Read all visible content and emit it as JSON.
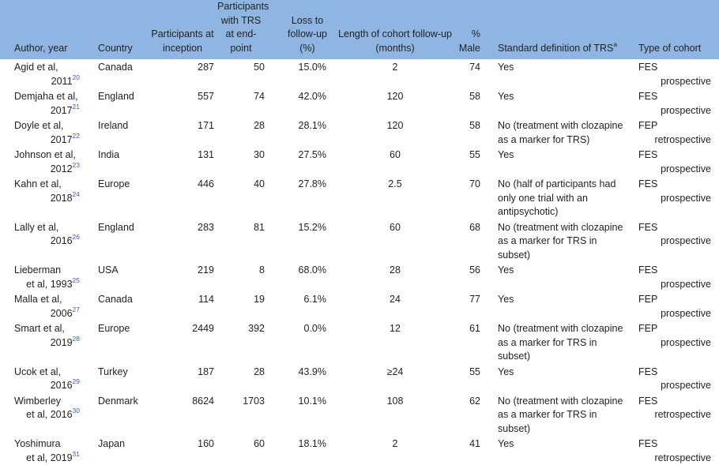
{
  "table": {
    "headers": [
      "Author, year",
      "Country",
      "Participants at inception",
      "Participants with TRS at end-point",
      "Loss to follow-up (%)",
      "Length of cohort follow-up (months)",
      "% Male",
      {
        "text": "Standard definition of TRS",
        "sup": "a"
      },
      "Type of cohort"
    ],
    "rows": [
      {
        "author": [
          "Agid et al,",
          "2011"
        ],
        "ref": "20",
        "country": "Canada",
        "inception": "287",
        "trs": "50",
        "loss": "15.0%",
        "length": "2",
        "male": "74",
        "definition": "Yes",
        "cohort": [
          "FES",
          "prospective"
        ]
      },
      {
        "author": [
          "Demjaha et al,",
          "2017"
        ],
        "ref": "21",
        "country": "England",
        "inception": "557",
        "trs": "74",
        "loss": "42.0%",
        "length": "120",
        "male": "58",
        "definition": "Yes",
        "cohort": [
          "FES",
          "prospective"
        ]
      },
      {
        "author": [
          "Doyle et al,",
          "2017"
        ],
        "ref": "22",
        "country": "Ireland",
        "inception": "171",
        "trs": "28",
        "loss": "28.1%",
        "length": "120",
        "male": "58",
        "definition": "No (treatment with clozapine as a marker for TRS)",
        "cohort": [
          "FEP",
          "retrospective"
        ]
      },
      {
        "author": [
          "Johnson et al,",
          "2012"
        ],
        "ref": "23",
        "country": "India",
        "inception": "131",
        "trs": "30",
        "loss": "27.5%",
        "length": "60",
        "male": "55",
        "definition": "Yes",
        "cohort": [
          "FES",
          "prospective"
        ]
      },
      {
        "author": [
          "Kahn et al,",
          "2018"
        ],
        "ref": "24",
        "country": "Europe",
        "inception": "446",
        "trs": "40",
        "loss": "27.8%",
        "length": "2.5",
        "male": "70",
        "definition": "No (half of participants had only one trial with an antipsychotic)",
        "cohort": [
          "FES",
          "prospective"
        ]
      },
      {
        "author": [
          "Lally et al,",
          "2016"
        ],
        "ref": "26",
        "country": "England",
        "inception": "283",
        "trs": "81",
        "loss": "15.2%",
        "length": "60",
        "male": "68",
        "definition": "No (treatment with clozapine as a marker for TRS in subset)",
        "cohort": [
          "FES",
          "prospective"
        ]
      },
      {
        "author": [
          "Lieberman",
          "et al, 1993"
        ],
        "ref": "25",
        "country": "USA",
        "inception": "219",
        "trs": "8",
        "loss": "68.0%",
        "length": "28",
        "male": "56",
        "definition": "Yes",
        "cohort": [
          "FES",
          "prospective"
        ]
      },
      {
        "author": [
          "Malla et al,",
          "2006"
        ],
        "ref": "27",
        "country": "Canada",
        "inception": "114",
        "trs": "19",
        "loss": "6.1%",
        "length": "24",
        "male": "77",
        "definition": "Yes",
        "cohort": [
          "FEP",
          "prospective"
        ]
      },
      {
        "author": [
          "Smart et al,",
          "2019"
        ],
        "ref": "28",
        "country": "Europe",
        "inception": "2449",
        "trs": "392",
        "loss": "0.0%",
        "length": "12",
        "male": "61",
        "definition": "No (treatment with clozapine as a marker for TRS in subset)",
        "cohort": [
          "FEP",
          "prospective"
        ]
      },
      {
        "author": [
          "Ucok et al,",
          "2016"
        ],
        "ref": "29",
        "country": "Turkey",
        "inception": "187",
        "trs": "28",
        "loss": "43.9%",
        "length": "≥24",
        "male": "55",
        "definition": "Yes",
        "cohort": [
          "FES",
          "prospective"
        ]
      },
      {
        "author": [
          "Wimberley",
          "et al, 2016"
        ],
        "ref": "30",
        "country": "Denmark",
        "inception": "8624",
        "trs": "1703",
        "loss": "10.1%",
        "length": "108",
        "male": "62",
        "definition": "No (treatment with clozapine as a marker for TRS in subset)",
        "cohort": [
          "FES",
          "retrospective"
        ]
      },
      {
        "author": [
          "Yoshimura",
          "et al, 2019"
        ],
        "ref": "31",
        "country": "Japan",
        "inception": "160",
        "trs": "60",
        "loss": "18.1%",
        "length": "2",
        "male": "41",
        "definition": "Yes",
        "cohort": [
          "FES",
          "retrospective"
        ]
      }
    ]
  }
}
